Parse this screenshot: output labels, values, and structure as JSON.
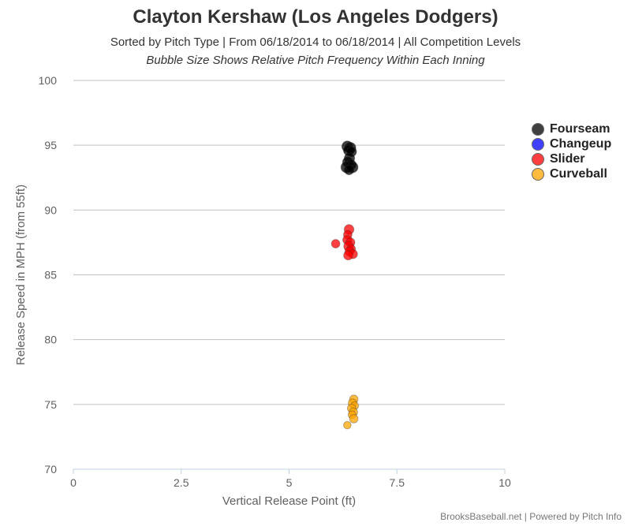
{
  "header": {
    "title": "Clayton Kershaw (Los Angeles Dodgers)",
    "subtitle": "Sorted by Pitch Type | From 06/18/2014 to 06/18/2014 | All Competition Levels",
    "subtitle2": "Bubble Size Shows Relative Pitch Frequency Within Each Inning"
  },
  "credits": "BrooksBaseball.net | Powered by Pitch Info",
  "chart_data": {
    "type": "scatter",
    "title": "Clayton Kershaw (Los Angeles Dodgers)",
    "xlabel": "Vertical Release Point (ft)",
    "ylabel": "Release Speed in MPH (from 55ft)",
    "xlim": [
      0,
      10
    ],
    "ylim": [
      70,
      100
    ],
    "x_ticks": [
      "0",
      "2.5",
      "5",
      "7.5",
      "10"
    ],
    "y_ticks": [
      "70",
      "75",
      "80",
      "85",
      "90",
      "95",
      "100"
    ],
    "x_tick_values": [
      0,
      2.5,
      5,
      7.5,
      10
    ],
    "y_tick_values": [
      70,
      75,
      80,
      85,
      90,
      95,
      100
    ],
    "grid": true,
    "legend_position": "right",
    "series": [
      {
        "name": "Fourseam",
        "color": "#000000",
        "points": [
          {
            "x": 6.35,
            "y": 94.9,
            "r": 1.0
          },
          {
            "x": 6.42,
            "y": 94.8,
            "r": 1.0
          },
          {
            "x": 6.38,
            "y": 94.6,
            "r": 0.9
          },
          {
            "x": 6.45,
            "y": 94.5,
            "r": 0.8
          },
          {
            "x": 6.4,
            "y": 94.0,
            "r": 0.9
          },
          {
            "x": 6.36,
            "y": 93.7,
            "r": 0.9
          },
          {
            "x": 6.44,
            "y": 93.5,
            "r": 0.8
          },
          {
            "x": 6.33,
            "y": 93.3,
            "r": 1.0
          },
          {
            "x": 6.47,
            "y": 93.3,
            "r": 1.0
          },
          {
            "x": 6.39,
            "y": 93.1,
            "r": 0.8
          }
        ]
      },
      {
        "name": "Changeup",
        "color": "#0000ff",
        "points": []
      },
      {
        "name": "Slider",
        "color": "#ff0000",
        "points": [
          {
            "x": 6.39,
            "y": 88.5,
            "r": 0.8
          },
          {
            "x": 6.36,
            "y": 88.1,
            "r": 0.6
          },
          {
            "x": 6.35,
            "y": 87.7,
            "r": 0.7
          },
          {
            "x": 6.42,
            "y": 87.5,
            "r": 0.7
          },
          {
            "x": 6.08,
            "y": 87.4,
            "r": 0.6
          },
          {
            "x": 6.38,
            "y": 87.2,
            "r": 0.8
          },
          {
            "x": 6.44,
            "y": 87.0,
            "r": 0.6
          },
          {
            "x": 6.4,
            "y": 86.8,
            "r": 0.7
          },
          {
            "x": 6.48,
            "y": 86.6,
            "r": 0.7
          },
          {
            "x": 6.37,
            "y": 86.5,
            "r": 0.7
          }
        ]
      },
      {
        "name": "Curveball",
        "color": "#ffa500",
        "points": [
          {
            "x": 6.5,
            "y": 75.4,
            "r": 0.6
          },
          {
            "x": 6.47,
            "y": 75.1,
            "r": 0.6
          },
          {
            "x": 6.52,
            "y": 74.9,
            "r": 0.5
          },
          {
            "x": 6.45,
            "y": 74.7,
            "r": 0.6
          },
          {
            "x": 6.49,
            "y": 74.4,
            "r": 0.6
          },
          {
            "x": 6.46,
            "y": 74.2,
            "r": 0.5
          },
          {
            "x": 6.5,
            "y": 73.9,
            "r": 0.6
          },
          {
            "x": 6.35,
            "y": 73.4,
            "r": 0.45
          }
        ]
      }
    ]
  }
}
